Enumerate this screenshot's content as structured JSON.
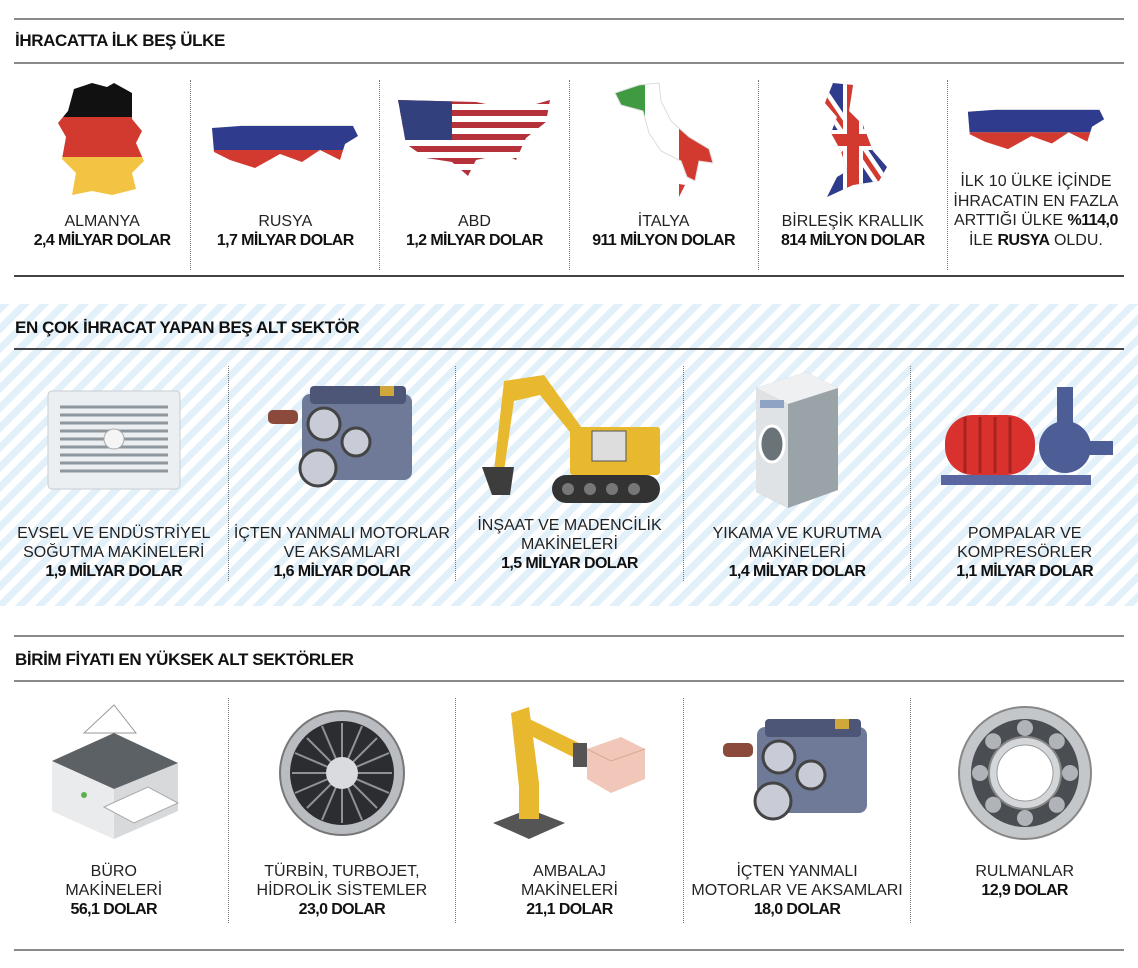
{
  "sections": [
    {
      "title": "İHRACATTA İLK BEŞ ÜLKE",
      "items": [
        {
          "label": "ALMANYA",
          "value": "2,4 MİLYAR DOLAR",
          "icon": "germany-flag-map-icon"
        },
        {
          "label": "RUSYA",
          "value": "1,7 MİLYAR DOLAR",
          "icon": "russia-flag-map-icon"
        },
        {
          "label": "ABD",
          "value": "1,2 MİLYAR DOLAR",
          "icon": "usa-flag-map-icon"
        },
        {
          "label": "İTALYA",
          "value": "911 MİLYON DOLAR",
          "icon": "italy-flag-map-icon"
        },
        {
          "label": "BİRLEŞİK KRALLIK",
          "value": "814 MİLYON DOLAR",
          "icon": "uk-flag-map-icon"
        }
      ],
      "note": {
        "line1": "İLK 10 ÜLKE İÇİNDE",
        "line2": "İHRACATIN EN FAZLA",
        "line3_pre": "ARTTIĞI ÜLKE ",
        "line3_bold": "%114,0",
        "line4_pre": "İLE ",
        "line4_bold": "RUSYA",
        "line4_post": " OLDU.",
        "icon": "russia-flag-map-icon"
      }
    },
    {
      "title": "EN ÇOK İHRACAT YAPAN BEŞ ALT SEKTÖR",
      "items": [
        {
          "label1": "EVSEL VE ENDÜSTRİYEL",
          "label2": "SOĞUTMA MAKİNELERİ",
          "value": "1,9 MİLYAR DOLAR",
          "icon": "air-conditioner-icon"
        },
        {
          "label1": "İÇTEN YANMALI MOTORLAR",
          "label2": "VE AKSAMLARI",
          "value": "1,6 MİLYAR DOLAR",
          "icon": "engine-icon"
        },
        {
          "label1": "İNŞAAT VE MADENCİLİK",
          "label2": "MAKİNELERİ",
          "value": "1,5 MİLYAR DOLAR",
          "icon": "excavator-icon"
        },
        {
          "label1": "YIKAMA VE KURUTMA",
          "label2": "MAKİNELERİ",
          "value": "1,4 MİLYAR DOLAR",
          "icon": "washing-machine-icon"
        },
        {
          "label1": "POMPALAR VE",
          "label2": "KOMPRESÖRLER",
          "value": "1,1 MİLYAR DOLAR",
          "icon": "pump-icon"
        }
      ]
    },
    {
      "title": "BİRİM FİYATI EN YÜKSEK ALT SEKTÖRLER",
      "items": [
        {
          "label1": "BÜRO",
          "label2": "MAKİNELERİ",
          "value": "56,1 DOLAR",
          "icon": "printer-icon"
        },
        {
          "label1": "TÜRBİN, TURBOJET,",
          "label2": "HİDROLİK SİSTEMLER",
          "value": "23,0 DOLAR",
          "icon": "turbine-icon"
        },
        {
          "label1": "AMBALAJ",
          "label2": "MAKİNELERİ",
          "value": "21,1 DOLAR",
          "icon": "robot-arm-icon"
        },
        {
          "label1": "İÇTEN YANMALI",
          "label2": "MOTORLAR VE AKSAMLARI",
          "value": "18,0 DOLAR",
          "icon": "engine-icon"
        },
        {
          "label1": "",
          "label2": "RULMANLAR",
          "value": "12,9 DOLAR",
          "icon": "ball-bearing-icon"
        }
      ]
    }
  ],
  "colors": {
    "stripe": "#e2f0fa",
    "rule": "#8a8a8a",
    "text": "#111111"
  }
}
